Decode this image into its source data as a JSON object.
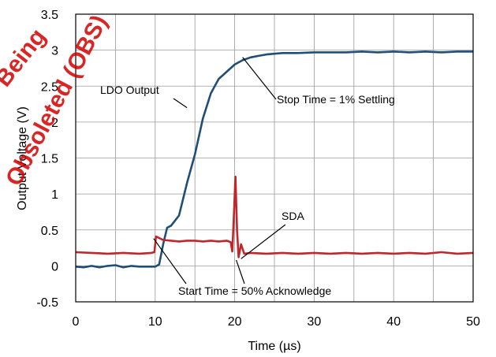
{
  "chart_data": {
    "type": "line",
    "xlabel": "Time (µs)",
    "ylabel": "Output Voltage (V)",
    "xlim": [
      0,
      50
    ],
    "ylim": [
      -0.5,
      3.5
    ],
    "xticks": [
      0,
      10,
      20,
      30,
      40,
      50
    ],
    "yticks": [
      -0.5,
      0,
      0.5,
      1,
      1.5,
      2,
      2.5,
      3,
      3.5
    ],
    "grid": true,
    "series": [
      {
        "name": "LDO Output",
        "color": "#1f4e79",
        "x": [
          0,
          1,
          2,
          3,
          4,
          5,
          6,
          7,
          8,
          9,
          10,
          10.5,
          11,
          11.5,
          12,
          13,
          14,
          15,
          16,
          17,
          18,
          19,
          20,
          21,
          22,
          23,
          24,
          25,
          26,
          28,
          30,
          32,
          34,
          36,
          38,
          40,
          42,
          44,
          46,
          48,
          50
        ],
        "y": [
          -0.01,
          -0.02,
          0.0,
          -0.02,
          0.0,
          0.01,
          -0.02,
          0.0,
          -0.01,
          -0.01,
          -0.01,
          0.02,
          0.3,
          0.53,
          0.56,
          0.7,
          1.15,
          1.55,
          2.05,
          2.4,
          2.6,
          2.7,
          2.8,
          2.86,
          2.9,
          2.92,
          2.94,
          2.95,
          2.96,
          2.96,
          2.97,
          2.97,
          2.97,
          2.98,
          2.97,
          2.98,
          2.97,
          2.98,
          2.97,
          2.98,
          2.98
        ]
      },
      {
        "name": "SDA",
        "color": "#c0272d",
        "x": [
          0,
          2,
          4,
          6,
          8,
          9.5,
          9.9,
          10.1,
          11,
          12,
          13,
          14,
          15,
          16,
          17,
          18,
          19,
          19.5,
          19.7,
          19.9,
          20.1,
          20.3,
          20.5,
          20.8,
          21.2,
          22,
          24,
          26,
          28,
          30,
          32,
          34,
          36,
          38,
          40,
          42,
          44,
          46,
          48,
          50
        ],
        "y": [
          0.19,
          0.18,
          0.17,
          0.18,
          0.17,
          0.18,
          0.19,
          0.41,
          0.36,
          0.35,
          0.34,
          0.35,
          0.35,
          0.34,
          0.35,
          0.34,
          0.35,
          0.33,
          0.2,
          0.7,
          1.24,
          0.5,
          0.12,
          0.3,
          0.17,
          0.18,
          0.17,
          0.18,
          0.17,
          0.18,
          0.17,
          0.18,
          0.17,
          0.18,
          0.17,
          0.18,
          0.17,
          0.19,
          0.17,
          0.18
        ]
      }
    ],
    "annotations": [
      {
        "text": "LDO Output",
        "pointer": [
          14,
          2.2
        ]
      },
      {
        "text": "Stop Time = 1% Settling",
        "pointer": [
          21,
          2.9
        ]
      },
      {
        "text": "SDA",
        "pointer": [
          20.8,
          0.1
        ]
      },
      {
        "text": "Start Time = 50% Acknowledge",
        "pointer_a": [
          9.8,
          0.38
        ],
        "pointer_b": [
          20.2,
          0.08
        ]
      }
    ]
  },
  "watermark": {
    "line1": "Being",
    "line2": "Obsoleted (OBS)"
  }
}
